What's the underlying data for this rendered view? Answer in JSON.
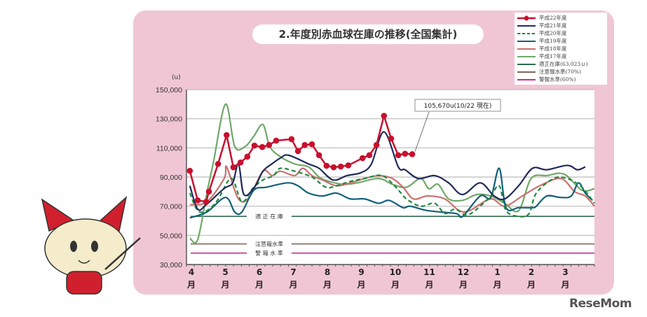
{
  "chart_data": {
    "type": "line",
    "title": "2.年度別赤血球在庫の推移(全国集計)",
    "ylabel": "(u)",
    "ylim": [
      30000,
      150000
    ],
    "yticks": [
      "150,000",
      "130,000",
      "110,000",
      "90,000",
      "70,000",
      "50,000",
      "30,000"
    ],
    "ytick_values": [
      150000,
      130000,
      110000,
      90000,
      70000,
      50000,
      30000
    ],
    "xlim": [
      0,
      12
    ],
    "months": [
      [
        "4",
        "月"
      ],
      [
        "5",
        "月"
      ],
      [
        "6",
        "月"
      ],
      [
        "7",
        "月"
      ],
      [
        "8",
        "月"
      ],
      [
        "9",
        "月"
      ],
      [
        "10",
        "月"
      ],
      [
        "11",
        "月"
      ],
      [
        "12",
        "月"
      ],
      [
        "1",
        "月"
      ],
      [
        "2",
        "月"
      ],
      [
        "3",
        "月"
      ]
    ],
    "x_unit": "months since start of April",
    "legend_position": "top-right",
    "series": [
      {
        "name": "平成22年度",
        "color": "#c8102e",
        "style": "marker",
        "points": [
          [
            0.1,
            94300
          ],
          [
            0.33,
            74000
          ],
          [
            0.58,
            73000
          ],
          [
            0.66,
            80000
          ],
          [
            0.93,
            99000
          ],
          [
            1.18,
            118800
          ],
          [
            1.38,
            96700
          ],
          [
            1.59,
            100000
          ],
          [
            1.79,
            104000
          ],
          [
            2.0,
            111600
          ],
          [
            2.23,
            110600
          ],
          [
            2.43,
            112000
          ],
          [
            2.64,
            115000
          ],
          [
            3.09,
            116000
          ],
          [
            3.28,
            107800
          ],
          [
            3.48,
            112000
          ],
          [
            3.69,
            112500
          ],
          [
            3.9,
            105000
          ],
          [
            4.12,
            97700
          ],
          [
            4.33,
            96700
          ],
          [
            4.54,
            97200
          ],
          [
            4.76,
            98000
          ],
          [
            5.18,
            103000
          ],
          [
            5.38,
            105000
          ],
          [
            5.59,
            112000
          ],
          [
            5.81,
            132000
          ],
          [
            6.02,
            116400
          ],
          [
            6.23,
            105000
          ],
          [
            6.43,
            106000
          ],
          [
            6.64,
            105670
          ]
        ]
      },
      {
        "name": "平成21年度",
        "color": "#1f2a5c",
        "style": "solid",
        "points": [
          [
            0.1,
            84000
          ],
          [
            0.33,
            68000
          ],
          [
            0.58,
            71000
          ],
          [
            1.1,
            82000
          ],
          [
            1.36,
            86000
          ],
          [
            1.53,
            99000
          ],
          [
            1.69,
            78000
          ],
          [
            2.0,
            83000
          ],
          [
            2.25,
            94000
          ],
          [
            2.51,
            99000
          ],
          [
            2.76,
            103000
          ],
          [
            3.0,
            105000
          ],
          [
            3.59,
            99000
          ],
          [
            3.9,
            96000
          ],
          [
            4.31,
            88000
          ],
          [
            4.72,
            91000
          ],
          [
            5.13,
            93000
          ],
          [
            5.44,
            99000
          ],
          [
            5.81,
            121000
          ],
          [
            6.23,
            97000
          ],
          [
            6.43,
            95000
          ],
          [
            6.82,
            89000
          ],
          [
            7.3,
            91000
          ],
          [
            7.71,
            86000
          ],
          [
            8.12,
            78000
          ],
          [
            8.64,
            86000
          ],
          [
            9.05,
            77000
          ],
          [
            9.36,
            75000
          ],
          [
            9.77,
            84000
          ],
          [
            10.18,
            96000
          ],
          [
            10.6,
            95000
          ],
          [
            11.2,
            98000
          ],
          [
            11.5,
            95000
          ],
          [
            11.73,
            97000
          ]
        ]
      },
      {
        "name": "平成20年度",
        "color": "#1f8a3e",
        "style": "dashed",
        "points": [
          [
            0.1,
            79000
          ],
          [
            0.33,
            67000
          ],
          [
            0.6,
            67000
          ],
          [
            0.91,
            74000
          ],
          [
            1.32,
            89000
          ],
          [
            1.63,
            73000
          ],
          [
            1.94,
            82000
          ],
          [
            2.25,
            88000
          ],
          [
            2.56,
            91000
          ],
          [
            2.76,
            96000
          ],
          [
            3.18,
            94000
          ],
          [
            3.69,
            90000
          ],
          [
            4.1,
            83000
          ],
          [
            4.41,
            84000
          ],
          [
            4.82,
            87000
          ],
          [
            5.24,
            89000
          ],
          [
            5.75,
            91000
          ],
          [
            6.16,
            83000
          ],
          [
            6.47,
            75000
          ],
          [
            6.89,
            70000
          ],
          [
            7.3,
            72000
          ],
          [
            7.6,
            65000
          ],
          [
            7.9,
            68000
          ],
          [
            8.23,
            64000
          ],
          [
            8.54,
            68000
          ],
          [
            8.95,
            77000
          ],
          [
            9.2,
            84000
          ],
          [
            9.4,
            67000
          ],
          [
            9.77,
            63000
          ],
          [
            10.08,
            65000
          ],
          [
            10.29,
            79000
          ],
          [
            10.8,
            89000
          ],
          [
            11.2,
            89000
          ],
          [
            11.63,
            83000
          ],
          [
            12.0,
            72000
          ]
        ]
      },
      {
        "name": "平成19年度",
        "color": "#12607a",
        "style": "solid",
        "points": [
          [
            0.1,
            62000
          ],
          [
            0.6,
            66000
          ],
          [
            1.15,
            76000
          ],
          [
            1.42,
            66000
          ],
          [
            1.63,
            66000
          ],
          [
            1.98,
            81000
          ],
          [
            2.35,
            83000
          ],
          [
            2.97,
            86000
          ],
          [
            3.28,
            84000
          ],
          [
            3.59,
            79000
          ],
          [
            4.0,
            77000
          ],
          [
            4.41,
            79000
          ],
          [
            4.82,
            75000
          ],
          [
            5.24,
            75000
          ],
          [
            5.65,
            72000
          ],
          [
            5.96,
            74000
          ],
          [
            6.37,
            69000
          ],
          [
            6.58,
            70000
          ],
          [
            7.09,
            67000
          ],
          [
            7.92,
            65000
          ],
          [
            8.12,
            63000
          ],
          [
            8.64,
            77000
          ],
          [
            8.95,
            76000
          ],
          [
            9.2,
            96000
          ],
          [
            9.4,
            69000
          ],
          [
            9.77,
            69000
          ],
          [
            10.18,
            69000
          ],
          [
            10.29,
            70000
          ],
          [
            10.6,
            77000
          ],
          [
            11.01,
            76000
          ],
          [
            11.32,
            77000
          ],
          [
            11.53,
            86000
          ],
          [
            11.73,
            79000
          ],
          [
            11.94,
            74000
          ]
        ]
      },
      {
        "name": "平成18年度",
        "color": "#c9706e",
        "style": "solid",
        "points": [
          [
            0.1,
            71000
          ],
          [
            0.6,
            73000
          ],
          [
            1.11,
            89000
          ],
          [
            1.18,
            97000
          ],
          [
            1.53,
            75000
          ],
          [
            1.84,
            76000
          ],
          [
            2.25,
            94000
          ],
          [
            2.52,
            91000
          ],
          [
            2.76,
            94000
          ],
          [
            3.18,
            91000
          ],
          [
            3.42,
            96000
          ],
          [
            3.69,
            91000
          ],
          [
            4.0,
            88000
          ],
          [
            4.41,
            84000
          ],
          [
            4.82,
            86000
          ],
          [
            5.24,
            89000
          ],
          [
            5.65,
            91000
          ],
          [
            6.06,
            89000
          ],
          [
            6.37,
            83000
          ],
          [
            6.68,
            75000
          ],
          [
            7.09,
            77000
          ],
          [
            7.6,
            75000
          ],
          [
            8.02,
            67000
          ],
          [
            8.33,
            67000
          ],
          [
            8.95,
            75000
          ],
          [
            9.36,
            70000
          ],
          [
            9.88,
            77000
          ],
          [
            10.39,
            84000
          ],
          [
            11.01,
            89000
          ],
          [
            11.42,
            80000
          ],
          [
            11.73,
            77000
          ],
          [
            12.0,
            70000
          ]
        ]
      },
      {
        "name": "平成17年度",
        "color": "#6fa86a",
        "style": "solid",
        "points": [
          [
            0.1,
            48000
          ],
          [
            0.33,
            47000
          ],
          [
            0.6,
            79000
          ],
          [
            0.8,
            101000
          ],
          [
            1.15,
            140000
          ],
          [
            1.42,
            111000
          ],
          [
            1.73,
            111000
          ],
          [
            1.98,
            118000
          ],
          [
            2.25,
            126000
          ],
          [
            2.45,
            111000
          ],
          [
            2.76,
            104000
          ],
          [
            3.18,
            99000
          ],
          [
            3.59,
            97000
          ],
          [
            3.9,
            90000
          ],
          [
            4.2,
            87000
          ],
          [
            4.62,
            85000
          ],
          [
            5.03,
            86000
          ],
          [
            5.65,
            89000
          ],
          [
            6.06,
            85000
          ],
          [
            6.47,
            83000
          ],
          [
            6.89,
            89000
          ],
          [
            7.13,
            82000
          ],
          [
            7.4,
            85000
          ],
          [
            7.71,
            75000
          ],
          [
            8.12,
            74000
          ],
          [
            8.54,
            78000
          ],
          [
            8.95,
            77000
          ],
          [
            9.36,
            72000
          ],
          [
            9.77,
            67000
          ],
          [
            10.14,
            89000
          ],
          [
            10.6,
            91000
          ],
          [
            11.11,
            92000
          ],
          [
            11.63,
            81000
          ],
          [
            12.0,
            82000
          ]
        ]
      }
    ],
    "reference_lines": [
      {
        "name": "適正在庫(63,023ｕ)",
        "label": "適 正 在 庫",
        "value": 63023,
        "color": "#2e6b4e"
      },
      {
        "name": "注意報水準(70%)",
        "label": "注意報水準",
        "value": 44116,
        "color": "#7a6a5a"
      },
      {
        "name": "警報水準(60%)",
        "label": "警 報 水 準",
        "value": 37814,
        "color": "#c0338a"
      }
    ],
    "annotation": {
      "text": "105,670u(10/22 現在)",
      "x": 6.64,
      "y": 105670
    }
  },
  "logo": "ReseMom"
}
